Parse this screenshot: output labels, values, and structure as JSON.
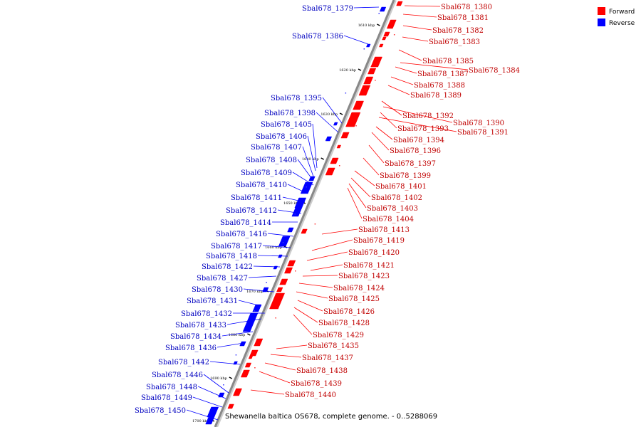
{
  "legend": {
    "forward_label": "Forward",
    "reverse_label": "Reverse",
    "forward_color": "#ff0000",
    "reverse_color": "#0000ff"
  },
  "caption": "Shewanella baltica OS678, complete genome. - 0..5288069",
  "backbone_color": "#888888",
  "ticks": [
    "1610 kbp",
    "1620 kbp",
    "1630 kbp",
    "1640 kbp",
    "1650 kbp",
    "1660 kbp",
    "1670 kbp",
    "1680 kbp",
    "1690 kbp",
    "1700 kbp"
  ],
  "forward_genes": [
    "Sbal678_1380",
    "Sbal678_1381",
    "Sbal678_1382",
    "Sbal678_1383",
    "Sbal678_1385",
    "Sbal678_1384",
    "Sbal678_1387",
    "Sbal678_1388",
    "Sbal678_1389",
    "Sbal678_1392",
    "Sbal678_1390",
    "Sbal678_1393",
    "Sbal678_1391",
    "Sbal678_1394",
    "Sbal678_1396",
    "Sbal678_1397",
    "Sbal678_1399",
    "Sbal678_1401",
    "Sbal678_1402",
    "Sbal678_1403",
    "Sbal678_1404",
    "Sbal678_1413",
    "Sbal678_1419",
    "Sbal678_1420",
    "Sbal678_1421",
    "Sbal678_1423",
    "Sbal678_1424",
    "Sbal678_1425",
    "Sbal678_1426",
    "Sbal678_1428",
    "Sbal678_1429",
    "Sbal678_1435",
    "Sbal678_1437",
    "Sbal678_1438",
    "Sbal678_1439",
    "Sbal678_1440"
  ],
  "reverse_genes": [
    "Sbal678_1379",
    "Sbal678_1386",
    "Sbal678_1395",
    "Sbal678_1398",
    "Sbal678_1405",
    "Sbal678_1406",
    "Sbal678_1407",
    "Sbal678_1408",
    "Sbal678_1409",
    "Sbal678_1410",
    "Sbal678_1411",
    "Sbal678_1412",
    "Sbal678_1414",
    "Sbal678_1416",
    "Sbal678_1417",
    "Sbal678_1418",
    "Sbal678_1422",
    "Sbal678_1427",
    "Sbal678_1430",
    "Sbal678_1431",
    "Sbal678_1432",
    "Sbal678_1433",
    "Sbal678_1434",
    "Sbal678_1436",
    "Sbal678_1442",
    "Sbal678_1446",
    "Sbal678_1448",
    "Sbal678_1449",
    "Sbal678_1450"
  ]
}
